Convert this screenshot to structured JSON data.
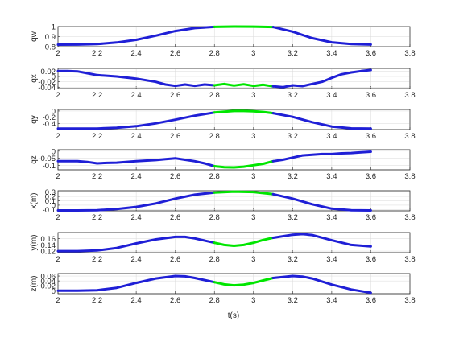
{
  "figure": {
    "xlabel": "t(s)",
    "colors": {
      "axis": "#262626",
      "grid": "#d9d9d9",
      "trajectory": "#1f1fd6",
      "highlight": "#00e600"
    }
  },
  "chart_data": [
    {
      "type": "line",
      "ylabel": "qw",
      "xlim": [
        2,
        3.8
      ],
      "ylim": [
        0.8,
        1
      ],
      "grid": true,
      "xticks": [
        "2",
        "2.2",
        "2.4",
        "2.6",
        "2.8",
        "3",
        "3.2",
        "3.4",
        "3.6",
        "3.8"
      ],
      "yticks": [
        "0.8",
        "0.9",
        "1"
      ],
      "series": [
        {
          "color": "#1f1fd6",
          "x": [
            2,
            2.1,
            2.2,
            2.3,
            2.4,
            2.5,
            2.6,
            2.7,
            2.8
          ],
          "y": [
            0.82,
            0.821,
            0.826,
            0.842,
            0.868,
            0.91,
            0.955,
            0.985,
            0.997
          ]
        },
        {
          "color": "#00e600",
          "x": [
            2.8,
            2.9,
            3.0,
            3.1
          ],
          "y": [
            0.997,
            1.0,
            0.999,
            0.995
          ]
        },
        {
          "color": "#1f1fd6",
          "x": [
            3.1,
            3.2,
            3.3,
            3.4,
            3.5,
            3.6
          ],
          "y": [
            0.995,
            0.95,
            0.885,
            0.843,
            0.826,
            0.821
          ]
        }
      ]
    },
    {
      "type": "line",
      "ylabel": "qx",
      "xlim": [
        2,
        3.8
      ],
      "ylim": [
        -0.045,
        0.03
      ],
      "grid": true,
      "xticks": [
        "2",
        "2.2",
        "2.4",
        "2.6",
        "2.8",
        "3",
        "3.2",
        "3.4",
        "3.6",
        "3.8"
      ],
      "yticks": [
        "0.02",
        "0",
        "-0.02",
        "-0.04"
      ],
      "series": [
        {
          "color": "#1f1fd6",
          "x": [
            2,
            2.05,
            2.1,
            2.15,
            2.2,
            2.3,
            2.4,
            2.5,
            2.55,
            2.6,
            2.65,
            2.7,
            2.75,
            2.8
          ],
          "y": [
            0.02,
            0.02,
            0.019,
            0.012,
            0.005,
            0.0,
            -0.008,
            -0.02,
            -0.03,
            -0.035,
            -0.03,
            -0.035,
            -0.03,
            -0.033
          ]
        },
        {
          "color": "#00e600",
          "x": [
            2.8,
            2.85,
            2.9,
            2.95,
            3.0,
            3.05,
            3.1
          ],
          "y": [
            -0.033,
            -0.028,
            -0.034,
            -0.029,
            -0.035,
            -0.031,
            -0.037
          ]
        },
        {
          "color": "#1f1fd6",
          "x": [
            3.1,
            3.15,
            3.2,
            3.25,
            3.3,
            3.35,
            3.4,
            3.45,
            3.5,
            3.55,
            3.6
          ],
          "y": [
            -0.037,
            -0.04,
            -0.033,
            -0.036,
            -0.028,
            -0.02,
            -0.005,
            0.008,
            0.015,
            0.02,
            0.024
          ]
        }
      ]
    },
    {
      "type": "line",
      "ylabel": "qy",
      "xlim": [
        2,
        3.8
      ],
      "ylim": [
        -0.6,
        0.05
      ],
      "grid": true,
      "xticks": [
        "2",
        "2.2",
        "2.4",
        "2.6",
        "2.8",
        "3",
        "3.2",
        "3.4",
        "3.6",
        "3.8"
      ],
      "yticks": [
        "0",
        "-0.2",
        "-0.4"
      ],
      "series": [
        {
          "color": "#1f1fd6",
          "x": [
            2,
            2.1,
            2.2,
            2.3,
            2.4,
            2.5,
            2.6,
            2.7,
            2.8
          ],
          "y": [
            -0.57,
            -0.569,
            -0.565,
            -0.54,
            -0.49,
            -0.4,
            -0.28,
            -0.15,
            -0.05
          ]
        },
        {
          "color": "#00e600",
          "x": [
            2.8,
            2.85,
            2.9,
            2.95,
            3.0,
            3.05,
            3.1
          ],
          "y": [
            -0.05,
            -0.02,
            0.0,
            0.0,
            -0.01,
            -0.03,
            -0.07
          ]
        },
        {
          "color": "#1f1fd6",
          "x": [
            3.1,
            3.2,
            3.3,
            3.4,
            3.5,
            3.6
          ],
          "y": [
            -0.07,
            -0.19,
            -0.36,
            -0.5,
            -0.56,
            -0.57
          ]
        }
      ]
    },
    {
      "type": "line",
      "ylabel": "qz",
      "xlim": [
        2,
        3.8
      ],
      "ylim": [
        -0.13,
        0.01
      ],
      "grid": true,
      "xticks": [
        "2",
        "2.2",
        "2.4",
        "2.6",
        "2.8",
        "3",
        "3.2",
        "3.4",
        "3.6",
        "3.8"
      ],
      "yticks": [
        "0",
        "-0.05",
        "-0.1"
      ],
      "series": [
        {
          "color": "#1f1fd6",
          "x": [
            2,
            2.1,
            2.15,
            2.2,
            2.25,
            2.3,
            2.4,
            2.5,
            2.55,
            2.6,
            2.65,
            2.7,
            2.75,
            2.8
          ],
          "y": [
            -0.07,
            -0.07,
            -0.075,
            -0.085,
            -0.082,
            -0.08,
            -0.07,
            -0.062,
            -0.056,
            -0.05,
            -0.06,
            -0.07,
            -0.085,
            -0.105
          ]
        },
        {
          "color": "#00e600",
          "x": [
            2.8,
            2.85,
            2.9,
            2.95,
            3.0,
            3.05,
            3.1
          ],
          "y": [
            -0.105,
            -0.112,
            -0.113,
            -0.108,
            -0.098,
            -0.088,
            -0.07
          ]
        },
        {
          "color": "#1f1fd6",
          "x": [
            3.1,
            3.15,
            3.2,
            3.25,
            3.3,
            3.35,
            3.4,
            3.45,
            3.5,
            3.55,
            3.6
          ],
          "y": [
            -0.07,
            -0.06,
            -0.045,
            -0.03,
            -0.025,
            -0.02,
            -0.02,
            -0.015,
            -0.013,
            -0.008,
            -0.004
          ]
        }
      ]
    },
    {
      "type": "line",
      "ylabel": "x(m)",
      "xlim": [
        2,
        3.8
      ],
      "ylim": [
        -0.13,
        0.33
      ],
      "grid": true,
      "xticks": [
        "2",
        "2.2",
        "2.4",
        "2.6",
        "2.8",
        "3",
        "3.2",
        "3.4",
        "3.6",
        "3.8"
      ],
      "yticks": [
        "0.3",
        "0.2",
        "0.1",
        "0",
        "-0.1"
      ],
      "series": [
        {
          "color": "#1f1fd6",
          "x": [
            2,
            2.1,
            2.2,
            2.3,
            2.4,
            2.5,
            2.6,
            2.7,
            2.8
          ],
          "y": [
            -0.12,
            -0.12,
            -0.115,
            -0.09,
            -0.04,
            0.04,
            0.15,
            0.24,
            0.29
          ]
        },
        {
          "color": "#00e600",
          "x": [
            2.8,
            2.9,
            3.0,
            3.1
          ],
          "y": [
            0.29,
            0.31,
            0.3,
            0.25
          ]
        },
        {
          "color": "#1f1fd6",
          "x": [
            3.1,
            3.2,
            3.3,
            3.4,
            3.5,
            3.6
          ],
          "y": [
            0.25,
            0.15,
            0.02,
            -0.08,
            -0.115,
            -0.12
          ]
        }
      ]
    },
    {
      "type": "line",
      "ylabel": "y(m)",
      "xlim": [
        2,
        3.8
      ],
      "ylim": [
        0.115,
        0.18
      ],
      "grid": true,
      "xticks": [
        "2",
        "2.2",
        "2.4",
        "2.6",
        "2.8",
        "3",
        "3.2",
        "3.4",
        "3.6",
        "3.8"
      ],
      "yticks": [
        "0.16",
        "0.14",
        "0.12"
      ],
      "series": [
        {
          "color": "#1f1fd6",
          "x": [
            2,
            2.1,
            2.2,
            2.3,
            2.4,
            2.5,
            2.6,
            2.65,
            2.7,
            2.8
          ],
          "y": [
            0.12,
            0.12,
            0.122,
            0.13,
            0.145,
            0.158,
            0.166,
            0.166,
            0.161,
            0.147
          ]
        },
        {
          "color": "#00e600",
          "x": [
            2.8,
            2.85,
            2.9,
            2.95,
            3.0,
            3.05,
            3.1
          ],
          "y": [
            0.147,
            0.14,
            0.137,
            0.14,
            0.147,
            0.156,
            0.163
          ]
        },
        {
          "color": "#1f1fd6",
          "x": [
            3.1,
            3.2,
            3.25,
            3.3,
            3.4,
            3.5,
            3.6
          ],
          "y": [
            0.163,
            0.173,
            0.175,
            0.172,
            0.155,
            0.14,
            0.135
          ]
        }
      ]
    },
    {
      "type": "line",
      "ylabel": "z(m)",
      "xlim": [
        2,
        3.8
      ],
      "ylim": [
        -0.012,
        0.07
      ],
      "grid": true,
      "xticks": [
        "2",
        "2.2",
        "2.4",
        "2.6",
        "2.8",
        "3",
        "3.2",
        "3.4",
        "3.6",
        "3.8"
      ],
      "yticks": [
        "0.06",
        "0.04",
        "0.02",
        "0"
      ],
      "series": [
        {
          "color": "#1f1fd6",
          "x": [
            2,
            2.1,
            2.2,
            2.3,
            2.4,
            2.5,
            2.6,
            2.65,
            2.7,
            2.8
          ],
          "y": [
            0.0,
            0.0,
            0.002,
            0.012,
            0.032,
            0.05,
            0.06,
            0.059,
            0.052,
            0.035
          ]
        },
        {
          "color": "#00e600",
          "x": [
            2.8,
            2.85,
            2.9,
            2.95,
            3.0,
            3.05,
            3.1
          ],
          "y": [
            0.035,
            0.026,
            0.022,
            0.025,
            0.032,
            0.042,
            0.052
          ]
        },
        {
          "color": "#1f1fd6",
          "x": [
            3.1,
            3.2,
            3.25,
            3.3,
            3.4,
            3.5,
            3.6
          ],
          "y": [
            0.052,
            0.06,
            0.058,
            0.05,
            0.025,
            0.005,
            -0.008
          ]
        }
      ]
    }
  ]
}
